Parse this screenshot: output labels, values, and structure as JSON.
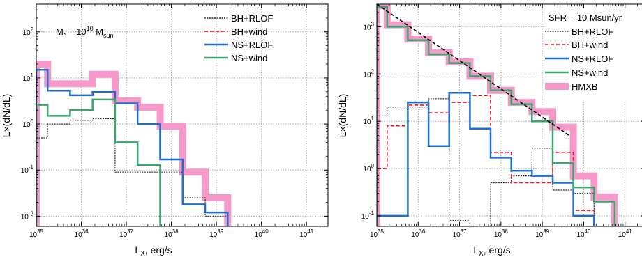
{
  "chart_data": [
    {
      "type": "line",
      "step": true,
      "panel": "left",
      "xlabel": "L",
      "xlabel_sub": "X",
      "xlabel_rest": ", erg/s",
      "ylabel": "L×(dN/dL)",
      "xscale": "log",
      "yscale": "log",
      "xlim": [
        1e+35,
        3e+41
      ],
      "ylim": [
        0.006,
        400
      ],
      "grid": true,
      "legend_position": "top-right",
      "annotation": {
        "prefix": "M",
        "prefix_sub": "*",
        "mid": " = 10",
        "exp": "10",
        "unit": " M",
        "unit_sub": "sun"
      },
      "x_ticks": [
        {
          "base": "10",
          "exp": "35"
        },
        {
          "base": "10",
          "exp": "36"
        },
        {
          "base": "10",
          "exp": "37"
        },
        {
          "base": "10",
          "exp": "38"
        },
        {
          "base": "10",
          "exp": "39"
        },
        {
          "base": "10",
          "exp": "40"
        },
        {
          "base": "10",
          "exp": "41"
        }
      ],
      "y_ticks": [
        {
          "base": "10",
          "exp": "-2"
        },
        {
          "base": "10",
          "exp": "-1"
        },
        {
          "base": "10",
          "exp": "0"
        },
        {
          "base": "10",
          "exp": "1"
        },
        {
          "base": "10",
          "exp": "2"
        }
      ],
      "bin_edges": [
        1e+35,
        1.78e+35,
        5.62e+35,
        1.78e+36,
        5.62e+36,
        1.78e+37,
        5.62e+37,
        1.78e+38,
        5.62e+38,
        1.78e+39
      ],
      "series": [
        {
          "name": "HMXB",
          "in_legend": false,
          "color": "#f59ac8",
          "width": 10,
          "dash": "none",
          "values": [
            20,
            7.5,
            7.5,
            12,
            3.2,
            2.3,
            0.9,
            0.09,
            0.025
          ]
        },
        {
          "name": "BH+RLOF",
          "in_legend": true,
          "color": "#333333",
          "width": 1.2,
          "dash": "2,1.5",
          "values": [
            0.5,
            1.0,
            1.2,
            1.3,
            0.09,
            0.09,
            0.09,
            0.025,
            0.01
          ]
        },
        {
          "name": "BH+wind",
          "in_legend": true,
          "color": "#e8141b",
          "width": 1.6,
          "dash": "5,3",
          "values": [
            null,
            null,
            null,
            null,
            null,
            null,
            null,
            null,
            null
          ]
        },
        {
          "name": "NS+RLOF",
          "in_legend": true,
          "color": "#1f6fd1",
          "width": 2.5,
          "dash": "none",
          "values": [
            15,
            5.3,
            4.2,
            5.0,
            2.8,
            1.0,
            0.17,
            0.018,
            0.012
          ]
        },
        {
          "name": "NS+wind",
          "in_legend": true,
          "color": "#3aa66d",
          "width": 2.5,
          "dash": "none",
          "values": [
            2.6,
            1.5,
            2.0,
            3.4,
            0.4,
            0.13,
            null,
            null,
            null
          ]
        }
      ]
    },
    {
      "type": "line",
      "step": true,
      "panel": "right",
      "xlabel": "L",
      "xlabel_sub": "X",
      "xlabel_rest": ", erg/s",
      "ylabel": "L×(dN/dL)",
      "xscale": "log",
      "yscale": "log",
      "xlim": [
        1e+35,
        3e+41
      ],
      "ylim": [
        0.06,
        3000
      ],
      "grid": true,
      "legend_position": "top-right",
      "annotation_text": "SFR = 10 Msun/yr",
      "x_ticks": [
        {
          "base": "10",
          "exp": "35"
        },
        {
          "base": "10",
          "exp": "36"
        },
        {
          "base": "10",
          "exp": "37"
        },
        {
          "base": "10",
          "exp": "38"
        },
        {
          "base": "10",
          "exp": "39"
        },
        {
          "base": "10",
          "exp": "40"
        },
        {
          "base": "10",
          "exp": "41"
        }
      ],
      "y_ticks": [
        {
          "base": "10",
          "exp": "-1"
        },
        {
          "base": "10",
          "exp": "0"
        },
        {
          "base": "10",
          "exp": "1"
        },
        {
          "base": "10",
          "exp": "2"
        },
        {
          "base": "10",
          "exp": "3"
        }
      ],
      "bin_edges": [
        1e+35,
        1.78e+35,
        5.62e+35,
        1.78e+36,
        5.62e+36,
        1.78e+37,
        5.62e+37,
        1.78e+38,
        5.62e+38,
        1.78e+39,
        5.62e+39,
        1.78e+40,
        5.62e+40
      ],
      "series": [
        {
          "name": "HMXB",
          "in_legend": true,
          "color": "#f59ac8",
          "width": 10,
          "dash": "none",
          "values": [
            2800,
            1100,
            550,
            280,
            180,
            90,
            45,
            25,
            16,
            7.5,
            0.7,
            0.25
          ]
        },
        {
          "name": "BH+RLOF",
          "in_legend": true,
          "color": "#333333",
          "width": 1.2,
          "dash": "2,1.5",
          "values": [
            13,
            20,
            20,
            30,
            0.08,
            0.05,
            0.5,
            0.7,
            2.7,
            0.35,
            0.3,
            null
          ]
        },
        {
          "name": "BH+wind",
          "in_legend": true,
          "color": "#e8141b",
          "width": 1.6,
          "dash": "5,3",
          "values": [
            1.0,
            8.0,
            22,
            15,
            25,
            35,
            2.2,
            0.5,
            0.5,
            2.2,
            0.13,
            null
          ]
        },
        {
          "name": "NS+RLOF",
          "in_legend": true,
          "color": "#1f6fd1",
          "width": 2.5,
          "dash": "none",
          "values": [
            0.1,
            0.1,
            25,
            3.0,
            40,
            7.0,
            1.7,
            0.9,
            0.7,
            0.5,
            0.1,
            null
          ]
        },
        {
          "name": "NS+wind",
          "in_legend": true,
          "color": "#3aa66d",
          "width": 2.5,
          "dash": "none",
          "values": [
            2600,
            1000,
            520,
            260,
            170,
            90,
            45,
            23,
            10,
            1.3,
            0.4,
            0.2
          ]
        }
      ],
      "fit_line": {
        "color": "#000000",
        "dash": "5,3",
        "x": [
          1e+35,
          4.5e+39
        ],
        "y": [
          3000,
          5
        ]
      }
    }
  ]
}
